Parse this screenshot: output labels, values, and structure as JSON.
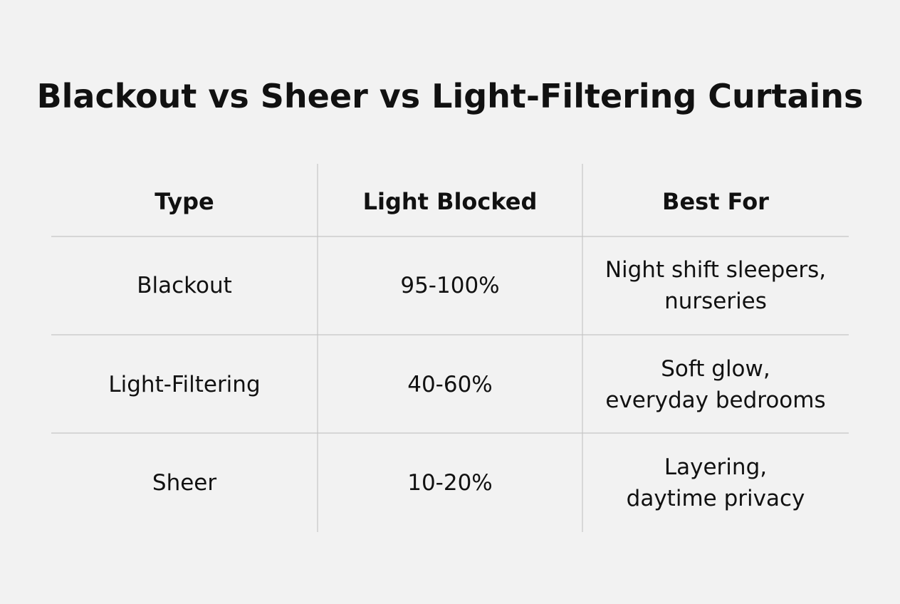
{
  "title": "Blackout vs Sheer vs Light-Filtering Curtains",
  "table": {
    "headers": [
      "Type",
      "Light Blocked",
      "Best For"
    ],
    "rows": [
      [
        "Blackout",
        "95-100%",
        [
          "Night shift sleepers,",
          "nurseries"
        ]
      ],
      [
        "Light-Filtering",
        "40-60%",
        [
          "Soft glow,",
          "everyday bedrooms"
        ]
      ],
      [
        "Sheer",
        "10-20%",
        [
          "Layering,",
          "daytime privacy"
        ]
      ]
    ]
  }
}
